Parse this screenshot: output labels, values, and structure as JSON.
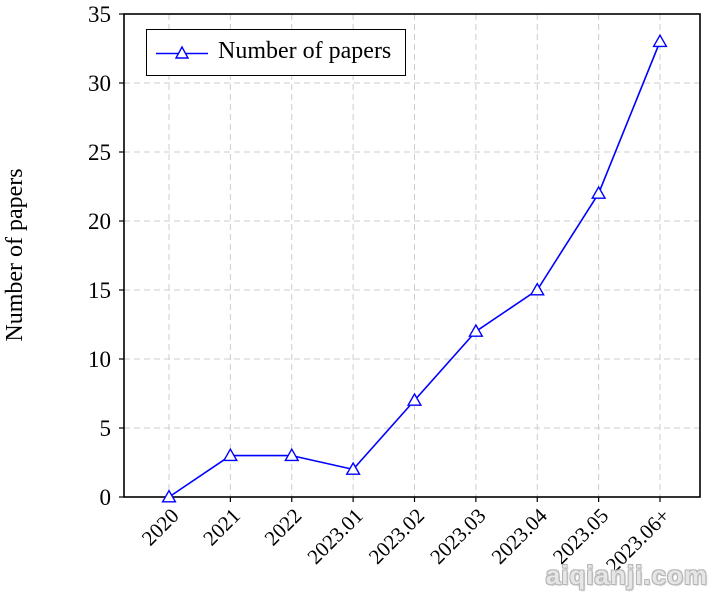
{
  "page": {
    "watermark": "aiqianji.com"
  },
  "chart_data": {
    "type": "line",
    "title": "",
    "categories": [
      "2020",
      "2021",
      "2022",
      "2023.01",
      "2023.02",
      "2023.03",
      "2023.04",
      "2023.05",
      "2023.06+"
    ],
    "series": [
      {
        "name": "Number of papers",
        "marker": "triangle-open",
        "color": "#0000ff",
        "values": [
          0,
          3,
          3,
          2,
          7,
          12,
          15,
          22,
          33
        ]
      }
    ],
    "xlabel": "",
    "ylabel": "Number of papers",
    "ylim": [
      0,
      35
    ],
    "yticks": [
      0,
      5,
      10,
      15,
      20,
      25,
      30,
      35
    ],
    "grid": "dashed-both-axes",
    "legend": {
      "label": "Number of papers",
      "position": "top-left"
    },
    "colors": {
      "line": "#0000ff",
      "grid": "#cccccc",
      "axis": "#000000",
      "text": "#000000",
      "watermark": "#c6c6c6"
    }
  }
}
